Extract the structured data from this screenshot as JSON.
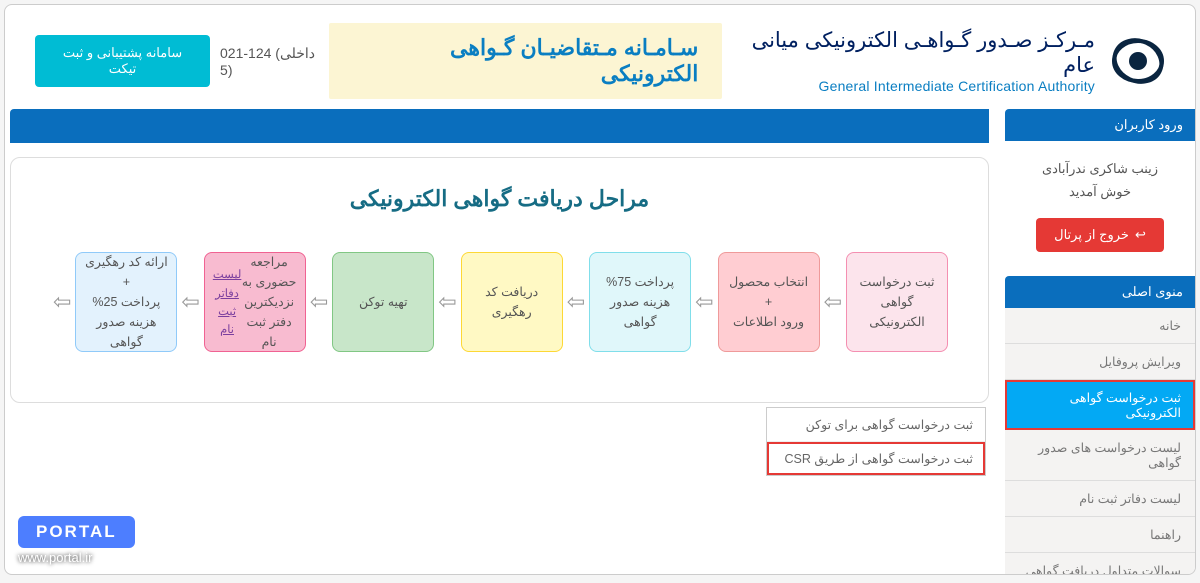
{
  "header": {
    "brand_title": "مـرکـز صـدور گـواهـی الکترونیکی میانی عام",
    "brand_sub": "General Intermediate Certification Authority",
    "center_title": "سـامـانه مـتقاضیـان گـواهی الکترونیکی",
    "phone": "021-124 (داخلی 5)",
    "ticket_btn": "سامانه پشتیبانی و ثبت تیکت"
  },
  "sidebar": {
    "login_header": "ورود کاربران",
    "user_name": "زینب شاکری ندرآبادی",
    "welcome": "خوش آمدید",
    "logout": "خروج از پرتال",
    "menu_header": "منوی اصلی",
    "items": [
      {
        "label": "خانه",
        "active": false
      },
      {
        "label": "ویرایش پروفایل",
        "active": false
      },
      {
        "label": "ثبت درخواست گواهی الکترونیکی",
        "active": true
      },
      {
        "label": "لیست درخواست های صدور گواهی",
        "active": false
      },
      {
        "label": "لیست دفاتر ثبت نام",
        "active": false
      },
      {
        "label": "راهنما",
        "active": false
      },
      {
        "label": "سوالات متداول دریافت گواهی الکترونیکی",
        "active": false
      }
    ]
  },
  "submenu": {
    "items": [
      {
        "label": "ثبت درخواست گواهی برای توکن",
        "highlight": false
      },
      {
        "label": "ثبت درخواست گواهی از طریق CSR",
        "highlight": true
      }
    ]
  },
  "steps": {
    "title": "مراحل دریافت گواهی الکترونیکی",
    "boxes": [
      {
        "text": "ثبت درخواست گواهی الکترونیکی",
        "bg": "#fce4ec",
        "border": "#f48fb1"
      },
      {
        "text": "انتخاب محصول\n+\nورود اطلاعات",
        "bg": "#ffcdd2",
        "border": "#ef9a9a"
      },
      {
        "text": "پرداخت 75% هزینه صدور گواهی",
        "bg": "#e0f7fa",
        "border": "#80deea"
      },
      {
        "text": "دریافت کد رهگیری",
        "bg": "#fff9c4",
        "border": "#fdd835"
      },
      {
        "text": "تهیه توکن",
        "bg": "#c8e6c9",
        "border": "#81c784"
      },
      {
        "text": "مراجعه حضوری به نزدیکترین دفتر ثبت نام",
        "link": "لیست دفاتر ثبت نام",
        "bg": "#f8bbd0",
        "border": "#f06292"
      },
      {
        "text": "ارائه کد رهگیری\n+\nپرداخت 25% هزینه صدور گواهی",
        "bg": "#e3f2fd",
        "border": "#90caf9"
      }
    ]
  },
  "watermark": {
    "badge": "PORTAL",
    "url": "www.portal.ir"
  },
  "colors": {
    "primary": "#0a6ebd",
    "accent": "#03a9f4",
    "danger": "#e53935",
    "teal": "#00bcd4"
  }
}
